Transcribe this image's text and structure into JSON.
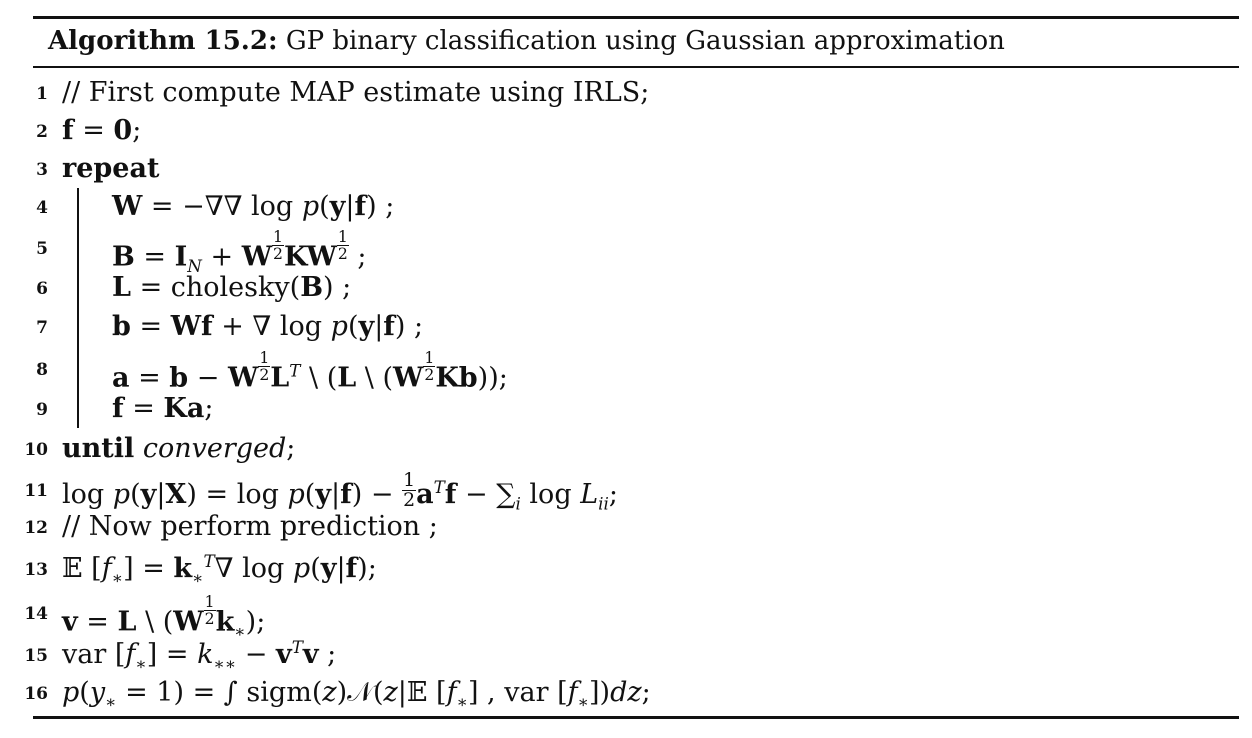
{
  "header": {
    "label": "Algorithm 15.2:",
    "title": "GP binary classification using Gaussian approximation"
  },
  "lines": [
    {
      "num": "1",
      "comment": "// First compute MAP estimate using IRLS;"
    },
    {
      "num": "2"
    },
    {
      "num": "3",
      "keyword": "repeat"
    },
    {
      "num": "4",
      "fn": "log"
    },
    {
      "num": "5"
    },
    {
      "num": "6",
      "fn": "cholesky"
    },
    {
      "num": "7",
      "fn": "log"
    },
    {
      "num": "8"
    },
    {
      "num": "9"
    },
    {
      "num": "10",
      "keyword": "until",
      "cond": "converged"
    },
    {
      "num": "11",
      "fn": "log"
    },
    {
      "num": "12",
      "comment": "// Now perform prediction ;"
    },
    {
      "num": "13",
      "fn": "log"
    },
    {
      "num": "14"
    },
    {
      "num": "15",
      "fn": "var"
    },
    {
      "num": "16",
      "fn": "sigm",
      "fn2": "var"
    }
  ]
}
